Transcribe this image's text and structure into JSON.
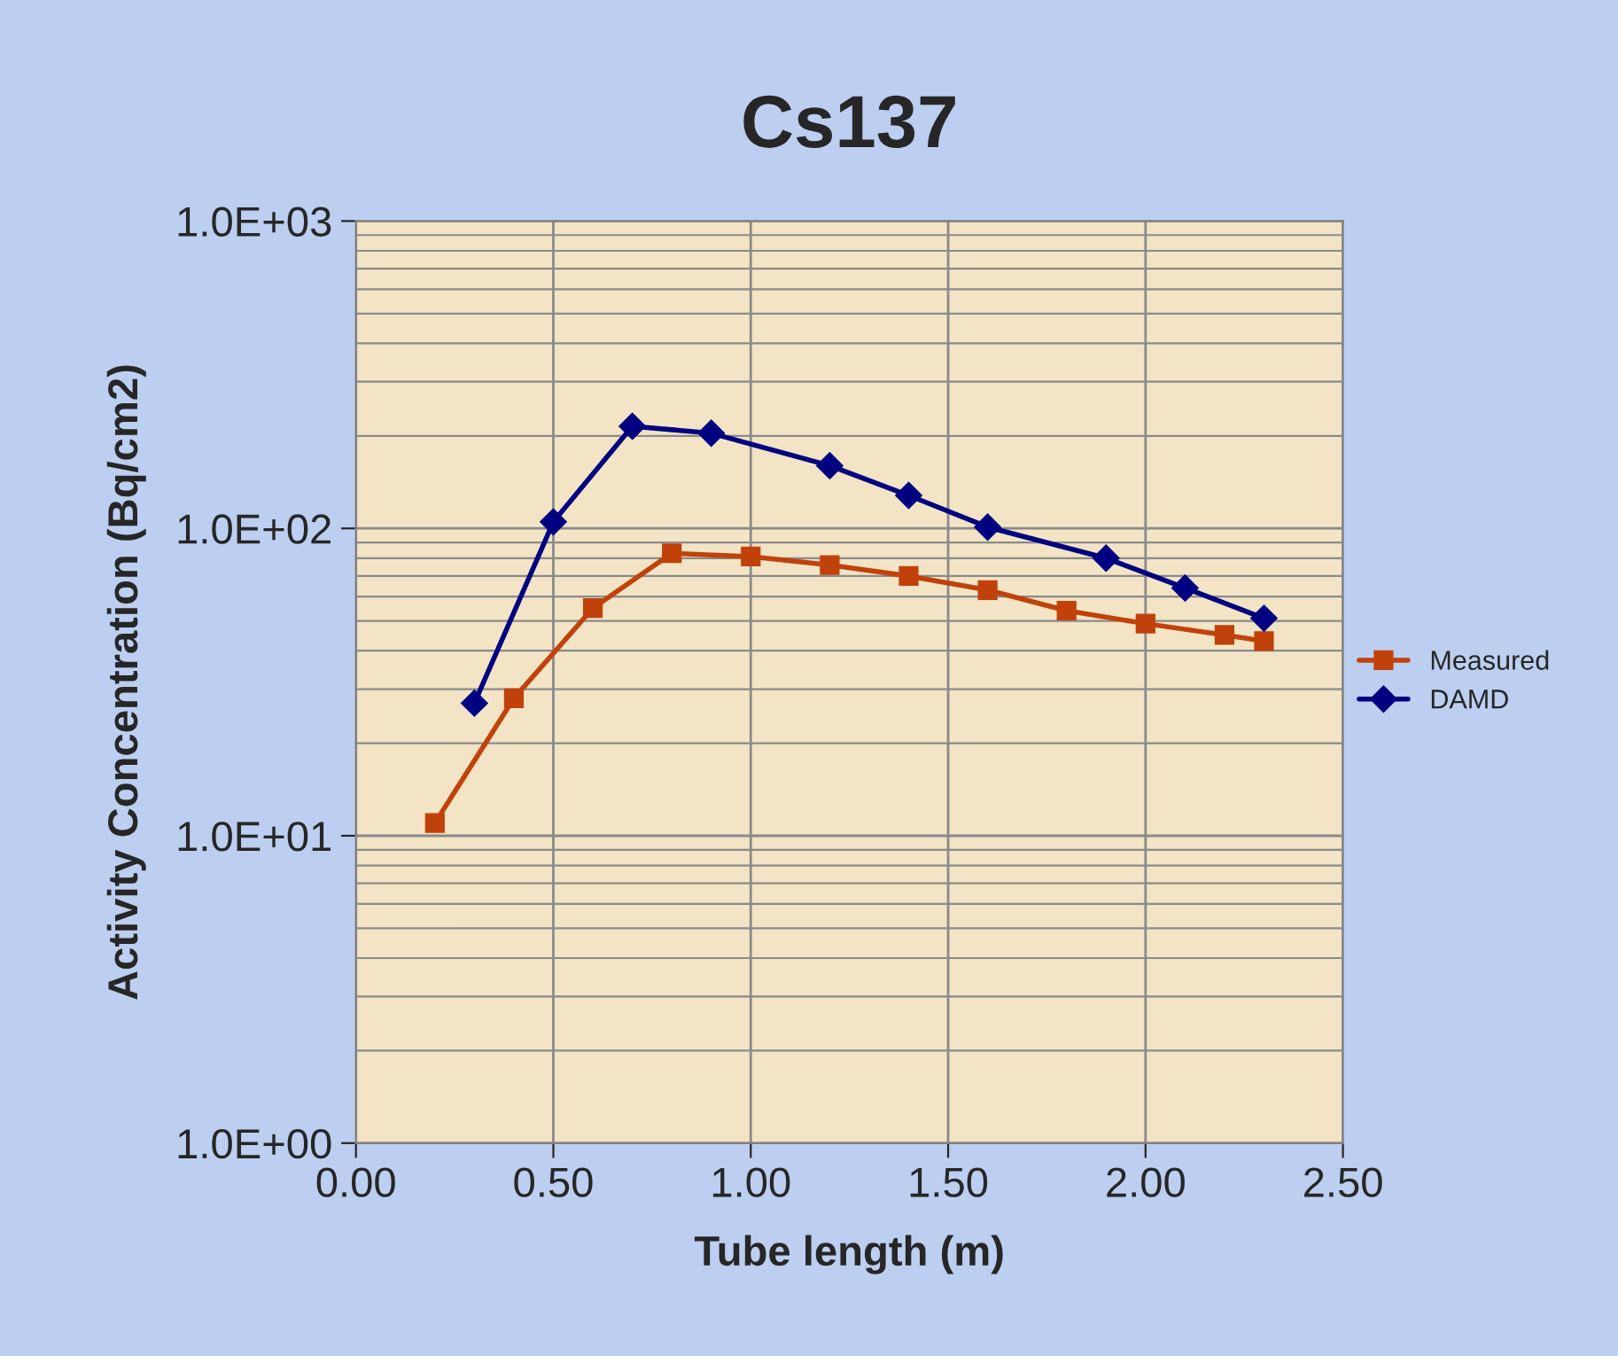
{
  "chart_data": {
    "type": "line",
    "title": "Cs137",
    "xlabel": "Tube length (m)",
    "ylabel": "Activity Concentration (Bq/cm2)",
    "series": [
      {
        "name": "Measured",
        "color": "#c0420a",
        "marker": "square",
        "x": [
          0.2,
          0.4,
          0.6,
          0.8,
          1.0,
          1.2,
          1.4,
          1.6,
          1.8,
          2.0,
          2.2,
          2.3
        ],
        "values": [
          11,
          28,
          55,
          83,
          81,
          76,
          70,
          63,
          54,
          49,
          45,
          43
        ]
      },
      {
        "name": "DAMD",
        "color": "#000080",
        "marker": "diamond",
        "x": [
          0.3,
          0.5,
          0.7,
          0.9,
          1.2,
          1.4,
          1.6,
          1.9,
          2.1,
          2.3
        ],
        "values": [
          27,
          105,
          215,
          204,
          160,
          128,
          101,
          80,
          64,
          51
        ]
      }
    ],
    "log": "y",
    "xlim": [
      0,
      2.5
    ],
    "xticks": [
      {
        "value": 0,
        "label": "0.00"
      },
      {
        "value": 0.5,
        "label": "0.50"
      },
      {
        "value": 1,
        "label": "1.00"
      },
      {
        "value": 1.5,
        "label": "1.50"
      },
      {
        "value": 2,
        "label": "2.00"
      },
      {
        "value": 2.5,
        "label": "2.50"
      }
    ],
    "ylim": [
      1,
      1000
    ],
    "yticks": [
      {
        "value": 1,
        "label": "1.0E+00"
      },
      {
        "value": 10,
        "label": "1.0E+01"
      },
      {
        "value": 100,
        "label": "1.0E+02"
      },
      {
        "value": 1000,
        "label": "1.0E+03"
      }
    ],
    "grid": true,
    "legend": "right",
    "line_style": "solid"
  }
}
